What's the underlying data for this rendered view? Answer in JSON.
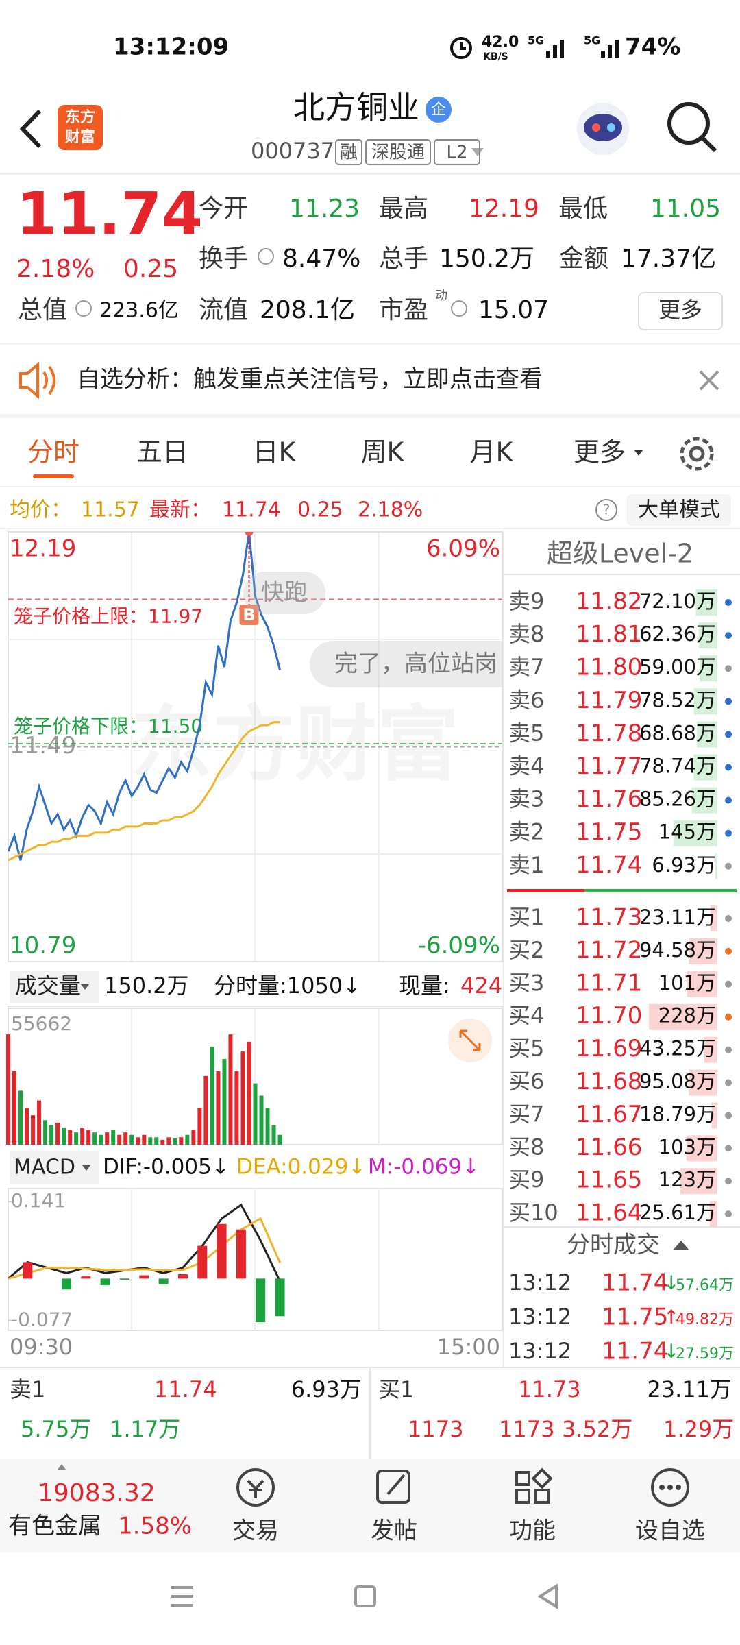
{
  "status_bar": {
    "time": "13:12:09",
    "net_speed": "42.0",
    "net_unit": "KB/S",
    "signal_a": "5G",
    "signal_b": "5G",
    "battery": "74%"
  },
  "header": {
    "logo": "东方财富",
    "title": "北方铜业",
    "badge": "企",
    "code": "000737",
    "tags": [
      "融",
      "深股通",
      "L2"
    ]
  },
  "quote": {
    "price": "11.74",
    "change_pct": "2.18%",
    "change": "0.25",
    "more": "更多",
    "stats": [
      {
        "label": "今开",
        "value": "11.23"
      },
      {
        "label": "最高",
        "value": "12.19"
      },
      {
        "label": "最低",
        "value": "11.05"
      },
      {
        "label": "换手",
        "value": "8.47%"
      },
      {
        "label": "总手",
        "value": "150.2万"
      },
      {
        "label": "金额",
        "value": "17.37亿"
      },
      {
        "label": "总值",
        "value": "223.6亿"
      },
      {
        "label": "流值",
        "value": "208.1亿"
      },
      {
        "label": "市盈",
        "sup": "动",
        "value": "15.07"
      }
    ]
  },
  "banner": {
    "text": "自选分析：触发重点关注信号，立即点击查看"
  },
  "tabs": [
    "分时",
    "五日",
    "日K",
    "周K",
    "月K",
    "更多"
  ],
  "info_bar": {
    "avg_label": "均价：",
    "avg": "11.57",
    "last_label": "最新：",
    "last": "11.74",
    "change": "0.25",
    "change_pct": "2.18%",
    "mode": "大单模式"
  },
  "chart_data": [
    {
      "type": "line",
      "ylim": [
        10.79,
        12.19
      ],
      "yticks": [
        12.19,
        11.49,
        10.79
      ],
      "y2lim": [
        -6.09,
        6.09
      ],
      "y2ticks": [
        {
          "value": 6.09,
          "label": "6.09%"
        },
        {
          "value": -6.09,
          "label": "-6.09%"
        }
      ],
      "grid": true,
      "series": [
        {
          "color": "#2f6fc4",
          "values": [
            11.15,
            11.2,
            11.12,
            11.22,
            11.28,
            11.36,
            11.3,
            11.24,
            11.27,
            11.22,
            11.25,
            11.2,
            11.26,
            11.3,
            11.28,
            11.24,
            11.31,
            11.27,
            11.34,
            11.38,
            11.33,
            11.36,
            11.4,
            11.35,
            11.34,
            11.38,
            11.42,
            11.39,
            11.44,
            11.41,
            11.48,
            11.56,
            11.7,
            11.66,
            11.82,
            11.75,
            11.9,
            11.96,
            12.05,
            12.19,
            11.98,
            11.92,
            11.88,
            11.82,
            11.74
          ]
        },
        {
          "color": "#f0b429",
          "values": [
            11.12,
            11.13,
            11.14,
            11.15,
            11.16,
            11.17,
            11.17,
            11.18,
            11.18,
            11.19,
            11.19,
            11.2,
            11.2,
            11.2,
            11.21,
            11.21,
            11.21,
            11.22,
            11.22,
            11.23,
            11.23,
            11.23,
            11.24,
            11.24,
            11.24,
            11.25,
            11.25,
            11.26,
            11.26,
            11.27,
            11.28,
            11.3,
            11.33,
            11.36,
            11.4,
            11.43,
            11.46,
            11.49,
            11.52,
            11.54,
            11.55,
            11.56,
            11.56,
            11.57,
            11.57
          ]
        }
      ],
      "price_limits": [
        {
          "label": "笼子价格上限：11.97",
          "value": 11.97,
          "color": "#e4252b"
        },
        {
          "label": "笼子价格下限：11.50",
          "value": 11.5,
          "color": "#1aa33f"
        }
      ],
      "annotations": [
        "快跑",
        "完了，高位站岗"
      ],
      "marker": "B",
      "watermark": "东方财富"
    },
    {
      "type": "bar",
      "title": "成交量",
      "total": "150.2万",
      "minute_volume": "分时量:1050↓",
      "current_label": "现量:",
      "current": "424",
      "ylim": [
        0,
        55662
      ],
      "yticks": [
        55662
      ],
      "values": [
        45000,
        30000,
        22000,
        15000,
        12000,
        18000,
        10000,
        8000,
        9000,
        7000,
        6000,
        5000,
        7000,
        6000,
        5000,
        4000,
        5000,
        6000,
        4000,
        5000,
        4000,
        3000,
        4000,
        3000,
        3000,
        2000,
        3000,
        2500,
        3000,
        4000,
        6000,
        15000,
        28000,
        40000,
        30000,
        35000,
        45000,
        30000,
        38000,
        42000,
        25000,
        20000,
        15000,
        8000,
        4000
      ]
    },
    {
      "type": "macd",
      "title": "MACD",
      "dif_label": "DIF:-0.005↓",
      "dea_label": "DEA:0.029↓",
      "m_label": "M:-0.069↓",
      "ylim": [
        -0.095,
        0.165
      ],
      "yticks": [
        0.141,
        -0.077
      ],
      "series": [
        {
          "color": "#222222",
          "values": [
            0.0,
            0.03,
            0.02,
            0.01,
            0.02,
            0.01,
            0.015,
            0.02,
            0.01,
            0.02,
            0.06,
            0.11,
            0.135,
            0.07,
            -0.005
          ]
        },
        {
          "color": "#f0b429",
          "values": [
            0.0,
            0.01,
            0.02,
            0.02,
            0.018,
            0.016,
            0.016,
            0.017,
            0.015,
            0.016,
            0.03,
            0.06,
            0.09,
            0.11,
            0.029
          ]
        },
        {
          "type": "bar",
          "values": [
            0.0,
            0.03,
            0.0,
            -0.02,
            0.004,
            -0.012,
            -0.002,
            0.006,
            -0.01,
            0.008,
            0.06,
            0.1,
            0.09,
            -0.08,
            -0.069
          ]
        }
      ]
    }
  ],
  "time_axis": [
    "09:30",
    "15:00"
  ],
  "order_book": {
    "title": "超级Level-2",
    "asks": [
      {
        "label": "卖9",
        "price": "11.82",
        "volume": {
          "value": 72.1,
          "label": "72.10万"
        },
        "dot": "#2f6fc4"
      },
      {
        "label": "卖8",
        "price": "11.81",
        "volume": {
          "value": 62.36,
          "label": "62.36万"
        },
        "dot": "#2f6fc4"
      },
      {
        "label": "卖7",
        "price": "11.80",
        "volume": {
          "value": 59.0,
          "label": "59.00万"
        },
        "dot": "#999999"
      },
      {
        "label": "卖6",
        "price": "11.79",
        "volume": {
          "value": 78.52,
          "label": "78.52万"
        },
        "dot": "#2f6fc4"
      },
      {
        "label": "卖5",
        "price": "11.78",
        "volume": {
          "value": 68.68,
          "label": "68.68万"
        },
        "dot": "#2f6fc4"
      },
      {
        "label": "卖4",
        "price": "11.77",
        "volume": {
          "value": 78.74,
          "label": "78.74万"
        },
        "dot": "#2f6fc4"
      },
      {
        "label": "卖3",
        "price": "11.76",
        "volume": {
          "value": 85.26,
          "label": "85.26万"
        },
        "dot": "#2f6fc4"
      },
      {
        "label": "卖2",
        "price": "11.75",
        "volume": {
          "value": 145,
          "label": "145万"
        },
        "dot": "#2f6fc4"
      },
      {
        "label": "卖1",
        "price": "11.74",
        "volume": {
          "value": 6.93,
          "label": "6.93万"
        },
        "dot": "#999999"
      }
    ],
    "bids": [
      {
        "label": "买1",
        "price": "11.73",
        "volume": {
          "value": 23.11,
          "label": "23.11万"
        },
        "dot": "#999999"
      },
      {
        "label": "买2",
        "price": "11.72",
        "volume": {
          "value": 94.58,
          "label": "94.58万"
        },
        "dot": "#f07020"
      },
      {
        "label": "买3",
        "price": "11.71",
        "volume": {
          "value": 101,
          "label": "101万"
        },
        "dot": "#999999"
      },
      {
        "label": "买4",
        "price": "11.70",
        "volume": {
          "value": 228,
          "label": "228万"
        },
        "dot": "#f07020"
      },
      {
        "label": "买5",
        "price": "11.69",
        "volume": {
          "value": 43.25,
          "label": "43.25万"
        },
        "dot": "#999999"
      },
      {
        "label": "买6",
        "price": "11.68",
        "volume": {
          "value": 95.08,
          "label": "95.08万"
        },
        "dot": "#999999"
      },
      {
        "label": "买7",
        "price": "11.67",
        "volume": {
          "value": 18.79,
          "label": "18.79万"
        },
        "dot": "#999999"
      },
      {
        "label": "买8",
        "price": "11.66",
        "volume": {
          "value": 103,
          "label": "103万"
        },
        "dot": "#999999"
      },
      {
        "label": "买9",
        "price": "11.65",
        "volume": {
          "value": 123,
          "label": "123万"
        },
        "dot": "#999999"
      },
      {
        "label": "买10",
        "price": "11.64",
        "volume": {
          "value": 25.61,
          "label": "25.61万"
        },
        "dot": "#999999"
      }
    ]
  },
  "trades": {
    "title": "分时成交",
    "rows": [
      {
        "time": "13:12",
        "price": "11.74",
        "arrow": "↓",
        "volume": "57.64万",
        "color": "#1aa33f"
      },
      {
        "time": "13:12",
        "price": "11.75",
        "arrow": "↑",
        "volume": "49.82万",
        "color": "#e4252b"
      },
      {
        "time": "13:12",
        "price": "11.74",
        "arrow": "↓",
        "volume": "27.59万",
        "color": "#1aa33f"
      }
    ]
  },
  "level1": {
    "ask": {
      "label": "卖1",
      "price": "11.74",
      "volume": "6.93万"
    },
    "bid": {
      "label": "买1",
      "price": "11.73",
      "volume": "23.11万"
    },
    "left_stats": [
      "5.75万",
      "1.17万"
    ],
    "right_stats": [
      "1173",
      "1173",
      "3.52万",
      "1.29万"
    ]
  },
  "bottom_bar": {
    "index_value": "19083.32",
    "sector": "有色金属",
    "sector_change": "1.58%",
    "actions": [
      "交易",
      "发帖",
      "功能",
      "设自选"
    ]
  }
}
